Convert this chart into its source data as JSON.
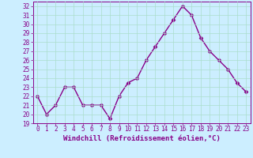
{
  "hours": [
    0,
    1,
    2,
    3,
    4,
    5,
    6,
    7,
    8,
    9,
    10,
    11,
    12,
    13,
    14,
    15,
    16,
    17,
    18,
    19,
    20,
    21,
    22,
    23
  ],
  "values": [
    22,
    20,
    21,
    23,
    23,
    21,
    21,
    21,
    19.5,
    22,
    23.5,
    24,
    26,
    27.5,
    29,
    30.5,
    32,
    31,
    28.5,
    27,
    26,
    25,
    23.5,
    22.5
  ],
  "line_color": "#880088",
  "marker": "D",
  "marker_size": 2.5,
  "line_width": 1.0,
  "bg_color": "#cceeff",
  "grid_color": "#aaddcc",
  "ylim": [
    19,
    32.5
  ],
  "xlim": [
    -0.5,
    23.5
  ],
  "yticks": [
    19,
    20,
    21,
    22,
    23,
    24,
    25,
    26,
    27,
    28,
    29,
    30,
    31,
    32
  ],
  "xtick_labels": [
    "0",
    "1",
    "2",
    "3",
    "4",
    "5",
    "6",
    "7",
    "8",
    "9",
    "10",
    "11",
    "12",
    "13",
    "14",
    "15",
    "16",
    "17",
    "18",
    "19",
    "20",
    "21",
    "22",
    "23"
  ],
  "tick_color": "#880088",
  "label_color": "#880088",
  "tick_fontsize": 5.5,
  "xlabel": "Windchill (Refroidissement éolien,°C)",
  "xlabel_fontsize": 6.5
}
